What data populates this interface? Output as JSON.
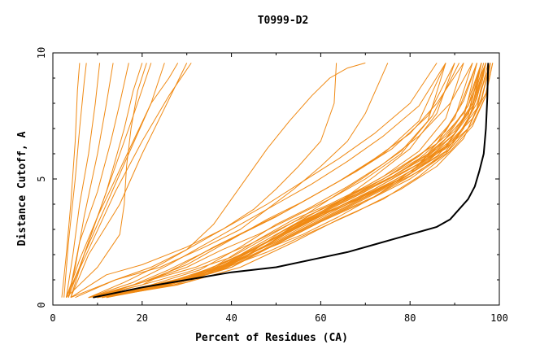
{
  "chart_data": {
    "type": "line",
    "title": "T0999-D2",
    "xlabel": "Percent of Residues (CA)",
    "ylabel": "Distance Cutoff, A",
    "xlim": [
      0,
      100
    ],
    "ylim": [
      0,
      10
    ],
    "x_ticks": [
      "0",
      "20",
      "40",
      "60",
      "80",
      "100"
    ],
    "y_ticks": [
      "0",
      "5",
      "10"
    ],
    "grid": false,
    "legend": "none",
    "colors": {
      "models": "#f08a14",
      "best": "#000000"
    },
    "series": [
      {
        "x": [
          2,
          3,
          4,
          5,
          5.5,
          6
        ],
        "y": [
          0.3,
          2,
          4,
          6.5,
          8.5,
          9.6
        ]
      },
      {
        "x": [
          2.5,
          3.5,
          5,
          6,
          7,
          7.5
        ],
        "y": [
          0.3,
          2.5,
          5,
          7,
          8.8,
          9.6
        ]
      },
      {
        "x": [
          3,
          4.5,
          6,
          8,
          9.5,
          10.5
        ],
        "y": [
          0.3,
          2,
          4,
          6,
          8,
          9.6
        ]
      },
      {
        "x": [
          3.5,
          5,
          7,
          10,
          12,
          13.5
        ],
        "y": [
          0.3,
          1.5,
          3.5,
          6,
          8,
          9.6
        ]
      },
      {
        "x": [
          3.5,
          6,
          10,
          13,
          15,
          17
        ],
        "y": [
          0.3,
          2.5,
          4.5,
          6.5,
          8,
          9.6
        ]
      },
      {
        "x": [
          4,
          7,
          12,
          16,
          18,
          20
        ],
        "y": [
          0.3,
          2,
          4.5,
          7,
          8.5,
          9.6
        ]
      },
      {
        "x": [
          3,
          6,
          10,
          14,
          18,
          22
        ],
        "y": [
          0.3,
          1.5,
          3.5,
          5.5,
          7.5,
          9.6
        ]
      },
      {
        "x": [
          3.5,
          7,
          12,
          17,
          22,
          25
        ],
        "y": [
          0.3,
          2,
          4,
          6,
          8,
          9.6
        ]
      },
      {
        "x": [
          4,
          8,
          15,
          20,
          25,
          30
        ],
        "y": [
          0.3,
          2,
          4,
          6,
          7.8,
          9.6
        ]
      },
      {
        "x": [
          3,
          10,
          15,
          16,
          16.5,
          17.5,
          19,
          21
        ],
        "y": [
          0.3,
          1.5,
          2.8,
          4,
          5.5,
          7,
          8.5,
          9.6
        ]
      },
      {
        "x": [
          3,
          6,
          10,
          14,
          18,
          22,
          26,
          28
        ],
        "y": [
          0.3,
          1.8,
          3.5,
          5,
          6.5,
          8,
          9,
          9.6
        ]
      },
      {
        "x": [
          3,
          8,
          14,
          20,
          26,
          31
        ],
        "y": [
          0.3,
          2.2,
          4.5,
          6.5,
          8.3,
          9.6
        ]
      },
      {
        "x": [
          4,
          12,
          20,
          30,
          38,
          45,
          50,
          55,
          60,
          63,
          63.5
        ],
        "y": [
          0.3,
          1.2,
          1.6,
          2.3,
          3,
          3.8,
          4.6,
          5.5,
          6.5,
          8,
          9.6
        ]
      },
      {
        "x": [
          4,
          14,
          24,
          34,
          42,
          48,
          54,
          60,
          66,
          70,
          75
        ],
        "y": [
          0.3,
          1.0,
          1.5,
          2.3,
          3,
          3.8,
          4.6,
          5.5,
          6.5,
          7.6,
          9.6
        ]
      },
      {
        "x": [
          5,
          14,
          22,
          30,
          36,
          40,
          44,
          48,
          53,
          58,
          62,
          66,
          70
        ],
        "y": [
          0.3,
          1.0,
          1.5,
          2.2,
          3.2,
          4.2,
          5.2,
          6.2,
          7.3,
          8.3,
          9.0,
          9.4,
          9.6
        ]
      },
      {
        "x": [
          8,
          20,
          30,
          40,
          48,
          55,
          62,
          70,
          78,
          84,
          88
        ],
        "y": [
          0.3,
          0.8,
          1.3,
          1.9,
          2.7,
          3.4,
          4.2,
          5.1,
          6.1,
          7.3,
          9.6
        ]
      },
      {
        "x": [
          8,
          20,
          30,
          40,
          50,
          58,
          65,
          72,
          80,
          86,
          90
        ],
        "y": [
          0.3,
          0.7,
          1.1,
          1.8,
          2.7,
          3.4,
          4.2,
          5.1,
          6.2,
          7.6,
          9.6
        ]
      },
      {
        "x": [
          8,
          20,
          30,
          40,
          50,
          58,
          66,
          74,
          82,
          88,
          92
        ],
        "y": [
          0.3,
          0.7,
          1.1,
          1.8,
          2.8,
          3.5,
          4.3,
          5.1,
          6.1,
          7.4,
          9.6
        ]
      },
      {
        "x": [
          8,
          20,
          32,
          42,
          52,
          60,
          68,
          76,
          84,
          90,
          94
        ],
        "y": [
          0.3,
          0.7,
          1.2,
          2.0,
          3.0,
          3.7,
          4.4,
          5.2,
          6.2,
          7.4,
          9.6
        ]
      },
      {
        "x": [
          9,
          22,
          34,
          44,
          54,
          62,
          70,
          78,
          86,
          92,
          95
        ],
        "y": [
          0.3,
          0.7,
          1.2,
          2.0,
          3.0,
          3.8,
          4.5,
          5.3,
          6.2,
          7.4,
          9.6
        ]
      },
      {
        "x": [
          9,
          22,
          34,
          46,
          56,
          64,
          72,
          80,
          88,
          93,
          96
        ],
        "y": [
          0.3,
          0.7,
          1.3,
          2.3,
          3.2,
          3.9,
          4.6,
          5.4,
          6.3,
          7.5,
          9.6
        ]
      },
      {
        "x": [
          10,
          24,
          36,
          48,
          58,
          66,
          74,
          82,
          90,
          94,
          97
        ],
        "y": [
          0.3,
          0.7,
          1.3,
          2.4,
          3.4,
          4.0,
          4.7,
          5.5,
          6.5,
          7.7,
          9.6
        ]
      },
      {
        "x": [
          10,
          24,
          36,
          46,
          54,
          62,
          70,
          78,
          86,
          92,
          96
        ],
        "y": [
          0.3,
          0.8,
          1.5,
          2.6,
          3.4,
          4.0,
          4.7,
          5.5,
          6.4,
          7.6,
          9.6
        ]
      },
      {
        "x": [
          9,
          22,
          33,
          42,
          50,
          58,
          66,
          74,
          82,
          89,
          94
        ],
        "y": [
          0.3,
          0.8,
          1.4,
          2.3,
          3.2,
          3.9,
          4.7,
          5.6,
          6.7,
          8.0,
          9.6
        ]
      },
      {
        "x": [
          10,
          25,
          38,
          48,
          56,
          64,
          72,
          80,
          88,
          93,
          97
        ],
        "y": [
          0.3,
          0.8,
          1.4,
          2.4,
          3.3,
          3.9,
          4.5,
          5.2,
          6.1,
          7.3,
          9.6
        ]
      },
      {
        "x": [
          10,
          26,
          38,
          50,
          60,
          68,
          76,
          84,
          90,
          95,
          97.5
        ],
        "y": [
          0.3,
          0.8,
          1.5,
          2.7,
          3.6,
          4.2,
          4.9,
          5.7,
          6.6,
          7.8,
          9.6
        ]
      },
      {
        "x": [
          11,
          26,
          40,
          52,
          62,
          70,
          78,
          86,
          91,
          95,
          98
        ],
        "y": [
          0.3,
          0.8,
          1.6,
          2.8,
          3.7,
          4.3,
          5.0,
          5.9,
          6.8,
          8.0,
          9.6
        ]
      },
      {
        "x": [
          10,
          24,
          36,
          46,
          56,
          64,
          72,
          80,
          86,
          91,
          95
        ],
        "y": [
          0.3,
          0.7,
          1.3,
          2.1,
          2.8,
          3.5,
          4.3,
          5.2,
          6.4,
          7.8,
          9.6
        ]
      },
      {
        "x": [
          9,
          20,
          28,
          36,
          44,
          52,
          60,
          68,
          76,
          84,
          90
        ],
        "y": [
          0.3,
          0.8,
          1.5,
          2.3,
          3.0,
          3.7,
          4.5,
          5.3,
          6.2,
          7.5,
          9.6
        ]
      },
      {
        "x": [
          11,
          28,
          42,
          54,
          64,
          72,
          80,
          88,
          93,
          96,
          98
        ],
        "y": [
          0.3,
          0.9,
          1.8,
          3.0,
          3.9,
          4.6,
          5.4,
          6.2,
          7.0,
          8.1,
          9.6
        ]
      },
      {
        "x": [
          8,
          18,
          26,
          34,
          42,
          50,
          58,
          66,
          74,
          82,
          88
        ],
        "y": [
          0.3,
          0.9,
          1.6,
          2.4,
          3.2,
          4.0,
          4.8,
          5.7,
          6.7,
          7.9,
          9.6
        ]
      },
      {
        "x": [
          12,
          30,
          44,
          56,
          66,
          74,
          82,
          89,
          94,
          97,
          98.5
        ],
        "y": [
          0.3,
          1.0,
          2.0,
          3.1,
          4.0,
          4.8,
          5.6,
          6.5,
          7.4,
          8.4,
          9.6
        ]
      },
      {
        "x": [
          9,
          20,
          30,
          38,
          46,
          54,
          62,
          70,
          78,
          85,
          91
        ],
        "y": [
          0.3,
          0.9,
          1.5,
          2.2,
          2.8,
          3.5,
          4.2,
          5.0,
          6.0,
          7.5,
          9.6
        ]
      },
      {
        "x": [
          10,
          25,
          38,
          50,
          60,
          70,
          80,
          88,
          93,
          96,
          98
        ],
        "y": [
          0.3,
          0.8,
          1.4,
          2.4,
          3.3,
          4.1,
          5.0,
          6.0,
          7.0,
          8.2,
          9.6
        ]
      },
      {
        "x": [
          9,
          22,
          34,
          46,
          56,
          66,
          76,
          84,
          90,
          94,
          96.5
        ],
        "y": [
          0.3,
          0.7,
          1.2,
          2.1,
          3.0,
          3.9,
          4.8,
          5.8,
          6.8,
          8.0,
          9.6
        ]
      },
      {
        "x": [
          8,
          20,
          30,
          40,
          48,
          56,
          64,
          72,
          80,
          86,
          92
        ],
        "y": [
          0.3,
          0.9,
          1.6,
          2.6,
          3.4,
          4.1,
          4.9,
          5.8,
          6.8,
          8.0,
          9.6
        ]
      },
      {
        "x": [
          10,
          26,
          40,
          52,
          62,
          72,
          80,
          88,
          92,
          95,
          97
        ],
        "y": [
          0.3,
          0.8,
          1.5,
          2.6,
          3.5,
          4.3,
          5.1,
          6.0,
          7.0,
          8.2,
          9.6
        ]
      },
      {
        "x": [
          11,
          28,
          42,
          54,
          64,
          74,
          82,
          89,
          94,
          97,
          98
        ],
        "y": [
          0.3,
          0.8,
          1.5,
          2.5,
          3.4,
          4.2,
          5.1,
          6.1,
          7.1,
          8.3,
          9.6
        ]
      },
      {
        "x": [
          8,
          16,
          24,
          32,
          40,
          48,
          56,
          64,
          72,
          80,
          86
        ],
        "y": [
          0.3,
          0.9,
          1.6,
          2.4,
          3.2,
          4.0,
          4.9,
          5.8,
          6.8,
          8.0,
          9.6
        ]
      },
      {
        "x": [
          10,
          25,
          38,
          50,
          58,
          66,
          74,
          82,
          88,
          93,
          96
        ],
        "y": [
          0.3,
          0.8,
          1.5,
          2.7,
          3.6,
          4.3,
          5.0,
          5.8,
          6.7,
          7.9,
          9.6
        ]
      },
      {
        "x": [
          9,
          20,
          30,
          40,
          50,
          60,
          70,
          80,
          88,
          93,
          96
        ],
        "y": [
          0.3,
          0.7,
          1.1,
          1.7,
          2.5,
          3.4,
          4.3,
          5.3,
          6.3,
          7.6,
          9.6
        ]
      },
      {
        "x": [
          10,
          22,
          32,
          42,
          52,
          62,
          72,
          82,
          88,
          93,
          97
        ],
        "y": [
          0.3,
          0.7,
          1.1,
          1.9,
          2.9,
          3.8,
          4.7,
          5.6,
          6.6,
          7.9,
          9.6
        ]
      },
      {
        "x": [
          12,
          30,
          42,
          52,
          60,
          68,
          76,
          84,
          90,
          94,
          96
        ],
        "y": [
          0.3,
          0.9,
          1.8,
          3.0,
          3.8,
          4.4,
          5.1,
          5.9,
          6.8,
          7.9,
          9.6
        ]
      },
      {
        "x": [
          11,
          24,
          36,
          46,
          56,
          66,
          76,
          84,
          90,
          94,
          97
        ],
        "y": [
          0.3,
          0.8,
          1.4,
          2.3,
          3.3,
          4.2,
          5.1,
          6.0,
          6.9,
          8.0,
          9.6
        ]
      },
      {
        "x": [
          10,
          24,
          36,
          48,
          58,
          68,
          78,
          86,
          92,
          95,
          97
        ],
        "y": [
          0.3,
          0.8,
          1.3,
          2.1,
          2.9,
          3.7,
          4.6,
          5.5,
          6.6,
          7.8,
          9.6
        ]
      },
      {
        "x": [
          9,
          18,
          26,
          34,
          42,
          50,
          58,
          66,
          74,
          82,
          88
        ],
        "y": [
          0.3,
          0.8,
          1.4,
          2.1,
          2.8,
          3.5,
          4.3,
          5.1,
          6.0,
          7.3,
          9.6
        ]
      },
      {
        "x": [
          11,
          27,
          40,
          52,
          62,
          72,
          82,
          89,
          94,
          97,
          98.5
        ],
        "y": [
          0.3,
          0.8,
          1.5,
          2.6,
          3.5,
          4.4,
          5.3,
          6.2,
          7.2,
          8.3,
          9.6
        ]
      },
      {
        "x": [
          9,
          20,
          32,
          44,
          54,
          64,
          74,
          82,
          88,
          92,
          95
        ],
        "y": [
          0.3,
          0.9,
          1.5,
          2.4,
          3.3,
          4.1,
          5.0,
          5.9,
          6.9,
          8.1,
          9.6
        ]
      }
    ],
    "best_model": {
      "x": [
        9,
        20,
        30,
        40,
        50,
        58,
        66,
        72,
        78,
        82,
        86,
        89,
        91,
        93,
        94.5,
        95.5,
        96.5,
        97,
        97.3,
        97.5
      ],
      "y": [
        0.3,
        0.7,
        1.0,
        1.3,
        1.5,
        1.8,
        2.1,
        2.4,
        2.7,
        2.9,
        3.1,
        3.4,
        3.8,
        4.2,
        4.7,
        5.3,
        6.0,
        7.0,
        8.2,
        9.6
      ]
    }
  }
}
